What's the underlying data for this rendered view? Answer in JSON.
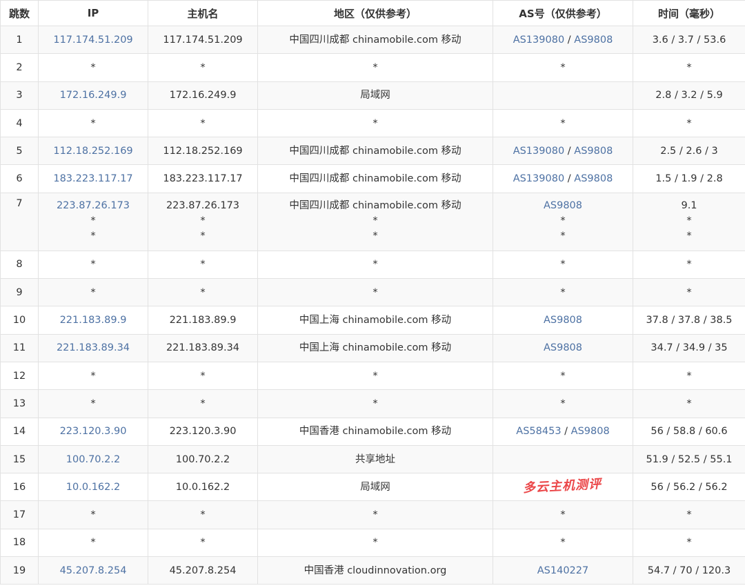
{
  "headers": [
    "跳数",
    "IP",
    "主机名",
    "地区（仅供参考）",
    "AS号（仅供参考）",
    "时间（毫秒）"
  ],
  "rows": [
    {
      "hop": "1",
      "lines": [
        {
          "ip": "117.174.51.209",
          "host": "117.174.51.209",
          "region": "中国四川成都 chinamobile.com 移动",
          "as": [
            "AS139080",
            "AS9808"
          ],
          "time": "3.6 / 3.7 / 53.6"
        }
      ]
    },
    {
      "hop": "2",
      "lines": [
        {
          "ip": "*",
          "host": "*",
          "region": "*",
          "as": [
            "*"
          ],
          "time": "*"
        }
      ]
    },
    {
      "hop": "3",
      "lines": [
        {
          "ip": "172.16.249.9",
          "host": "172.16.249.9",
          "region": "局域网",
          "as": [],
          "time": "2.8 / 3.2 / 5.9"
        }
      ]
    },
    {
      "hop": "4",
      "lines": [
        {
          "ip": "*",
          "host": "*",
          "region": "*",
          "as": [
            "*"
          ],
          "time": "*"
        }
      ]
    },
    {
      "hop": "5",
      "lines": [
        {
          "ip": "112.18.252.169",
          "host": "112.18.252.169",
          "region": "中国四川成都 chinamobile.com 移动",
          "as": [
            "AS139080",
            "AS9808"
          ],
          "time": "2.5 / 2.6 / 3"
        }
      ]
    },
    {
      "hop": "6",
      "lines": [
        {
          "ip": "183.223.117.17",
          "host": "183.223.117.17",
          "region": "中国四川成都 chinamobile.com 移动",
          "as": [
            "AS139080",
            "AS9808"
          ],
          "time": "1.5 / 1.9 / 2.8"
        }
      ]
    },
    {
      "hop": "7",
      "lines": [
        {
          "ip": "223.87.26.173",
          "host": "223.87.26.173",
          "region": "中国四川成都 chinamobile.com 移动",
          "as": [
            "AS9808"
          ],
          "time": "9.1"
        },
        {
          "ip": "*",
          "host": "*",
          "region": "*",
          "as": [
            "*"
          ],
          "time": "*"
        },
        {
          "ip": "*",
          "host": "*",
          "region": "*",
          "as": [
            "*"
          ],
          "time": "*"
        }
      ]
    },
    {
      "hop": "8",
      "lines": [
        {
          "ip": "*",
          "host": "*",
          "region": "*",
          "as": [
            "*"
          ],
          "time": "*"
        }
      ]
    },
    {
      "hop": "9",
      "lines": [
        {
          "ip": "*",
          "host": "*",
          "region": "*",
          "as": [
            "*"
          ],
          "time": "*"
        }
      ]
    },
    {
      "hop": "10",
      "lines": [
        {
          "ip": "221.183.89.9",
          "host": "221.183.89.9",
          "region": "中国上海 chinamobile.com 移动",
          "as": [
            "AS9808"
          ],
          "time": "37.8 / 37.8 / 38.5"
        }
      ]
    },
    {
      "hop": "11",
      "lines": [
        {
          "ip": "221.183.89.34",
          "host": "221.183.89.34",
          "region": "中国上海 chinamobile.com 移动",
          "as": [
            "AS9808"
          ],
          "time": "34.7 / 34.9 / 35"
        }
      ]
    },
    {
      "hop": "12",
      "lines": [
        {
          "ip": "*",
          "host": "*",
          "region": "*",
          "as": [
            "*"
          ],
          "time": "*"
        }
      ]
    },
    {
      "hop": "13",
      "lines": [
        {
          "ip": "*",
          "host": "*",
          "region": "*",
          "as": [
            "*"
          ],
          "time": "*"
        }
      ]
    },
    {
      "hop": "14",
      "lines": [
        {
          "ip": "223.120.3.90",
          "host": "223.120.3.90",
          "region": "中国香港 chinamobile.com 移动",
          "as": [
            "AS58453",
            "AS9808"
          ],
          "time": "56 / 58.8 / 60.6"
        }
      ]
    },
    {
      "hop": "15",
      "lines": [
        {
          "ip": "100.70.2.2",
          "host": "100.70.2.2",
          "region": "共享地址",
          "as": [],
          "time": "51.9 / 52.5 / 55.1"
        }
      ]
    },
    {
      "hop": "16",
      "lines": [
        {
          "ip": "10.0.162.2",
          "host": "10.0.162.2",
          "region": "局域网",
          "as": [],
          "time": "56 / 56.2 / 56.2"
        }
      ]
    },
    {
      "hop": "17",
      "lines": [
        {
          "ip": "*",
          "host": "*",
          "region": "*",
          "as": [
            "*"
          ],
          "time": "*"
        }
      ]
    },
    {
      "hop": "18",
      "lines": [
        {
          "ip": "*",
          "host": "*",
          "region": "*",
          "as": [
            "*"
          ],
          "time": "*"
        }
      ]
    },
    {
      "hop": "19",
      "lines": [
        {
          "ip": "45.207.8.254",
          "host": "45.207.8.254",
          "region": "中国香港 cloudinnovation.org",
          "as": [
            "AS140227"
          ],
          "time": "54.7 / 70 / 120.3"
        }
      ]
    }
  ],
  "watermark": "多云主机测评",
  "colors": {
    "link": "#4d71a3",
    "row_alt": "#f9f9f9",
    "border": "#e2e2e2"
  }
}
